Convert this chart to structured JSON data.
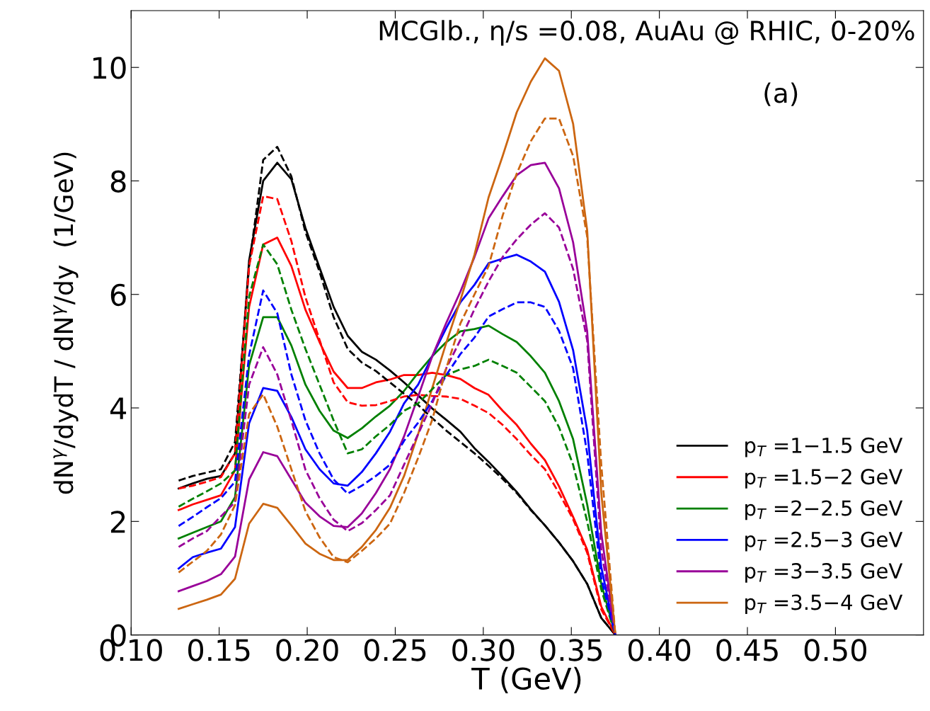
{
  "chart_data": {
    "type": "line",
    "title": "MCGlb., η/s =0.08, AuAu @ RHIC, 0-20%",
    "xlabel": "T (GeV)",
    "ylabel": "dN$^{γ}$/dydT / dN$^{γ}$/dy  (1/GeV)",
    "annotations": [
      "(a)"
    ],
    "x": [
      0.127,
      0.135,
      0.143,
      0.151,
      0.159,
      0.167,
      0.175,
      0.183,
      0.191,
      0.199,
      0.207,
      0.215,
      0.223,
      0.231,
      0.239,
      0.247,
      0.255,
      0.263,
      0.271,
      0.279,
      0.287,
      0.295,
      0.303,
      0.311,
      0.319,
      0.327,
      0.335,
      0.343,
      0.351,
      0.359,
      0.367,
      0.375
    ],
    "series": [
      {
        "name": "p$_{T}$ =1−1.5 GeV",
        "color": "#000000",
        "line_style": "solid",
        "values": [
          2.58,
          2.67,
          2.75,
          2.8,
          3.2,
          6.6,
          8.0,
          8.32,
          8.03,
          7.17,
          6.47,
          5.78,
          5.27,
          4.99,
          4.85,
          4.66,
          4.45,
          4.22,
          3.99,
          3.79,
          3.58,
          3.29,
          3.05,
          2.79,
          2.52,
          2.21,
          1.93,
          1.63,
          1.3,
          0.9,
          0.3,
          0
        ]
      },
      {
        "name": "p$_{T}$ =1.5−2 GeV",
        "color": "#ff0000",
        "line_style": "solid",
        "values": [
          2.2,
          2.3,
          2.38,
          2.46,
          2.9,
          5.78,
          6.88,
          7.0,
          6.5,
          5.73,
          5.16,
          4.64,
          4.35,
          4.35,
          4.45,
          4.5,
          4.58,
          4.58,
          4.62,
          4.58,
          4.51,
          4.35,
          4.23,
          3.95,
          3.7,
          3.37,
          3.08,
          2.62,
          2.08,
          1.5,
          0.5,
          0
        ]
      },
      {
        "name": "p$_{T}$ =2−2.5 GeV",
        "color": "#008000",
        "line_style": "solid",
        "values": [
          1.7,
          1.8,
          1.9,
          2.0,
          2.43,
          4.75,
          5.6,
          5.6,
          5.1,
          4.41,
          3.95,
          3.6,
          3.47,
          3.64,
          3.85,
          4.04,
          4.3,
          4.62,
          4.91,
          5.16,
          5.35,
          5.39,
          5.45,
          5.3,
          5.16,
          4.91,
          4.62,
          4.12,
          3.45,
          2.3,
          0.9,
          0
        ]
      },
      {
        "name": "p$_{T}$ =2.5−3 GeV",
        "color": "#0000ff",
        "line_style": "solid",
        "values": [
          1.17,
          1.37,
          1.45,
          1.52,
          1.9,
          3.73,
          4.35,
          4.3,
          3.84,
          3.27,
          2.92,
          2.67,
          2.63,
          2.87,
          3.2,
          3.58,
          4.08,
          4.41,
          4.91,
          5.41,
          5.86,
          6.17,
          6.55,
          6.63,
          6.7,
          6.58,
          6.4,
          5.87,
          5.02,
          3.6,
          1.2,
          0
        ]
      },
      {
        "name": "p$_{T}$ =3−3.5 GeV",
        "color": "#990099",
        "line_style": "solid",
        "values": [
          0.77,
          0.86,
          0.95,
          1.07,
          1.38,
          2.74,
          3.22,
          3.15,
          2.74,
          2.33,
          2.09,
          1.92,
          1.9,
          2.14,
          2.5,
          2.92,
          3.5,
          4.2,
          4.91,
          5.5,
          6.05,
          6.66,
          7.34,
          7.73,
          8.1,
          8.28,
          8.32,
          7.87,
          6.92,
          5.35,
          1.8,
          0
        ]
      },
      {
        "name": "p$_{T}$ =3.5−4 GeV",
        "color": "#cc6611",
        "line_style": "solid",
        "values": [
          0.46,
          0.54,
          0.62,
          0.71,
          0.99,
          1.96,
          2.31,
          2.24,
          1.93,
          1.61,
          1.43,
          1.32,
          1.32,
          1.55,
          1.85,
          2.24,
          2.8,
          3.54,
          4.35,
          5.15,
          5.9,
          6.7,
          7.71,
          8.44,
          9.21,
          9.75,
          10.16,
          9.94,
          9.01,
          7.13,
          2.5,
          0
        ]
      },
      {
        "color": "#000000",
        "line_style": "dashed",
        "values": [
          2.72,
          2.8,
          2.86,
          2.92,
          3.4,
          6.5,
          8.37,
          8.6,
          8.08,
          7.1,
          6.4,
          5.6,
          5.04,
          4.8,
          4.65,
          4.45,
          4.25,
          4.05,
          3.82,
          3.6,
          3.4,
          3.2,
          2.98,
          2.75,
          2.5,
          2.2,
          1.93,
          1.63,
          1.3,
          0.9,
          0.3,
          0
        ]
      },
      {
        "color": "#ff0000",
        "line_style": "dashed",
        "values": [
          2.58,
          2.63,
          2.7,
          2.78,
          3.2,
          6.5,
          7.73,
          7.68,
          6.94,
          5.95,
          5.2,
          4.45,
          4.1,
          4.04,
          4.05,
          4.12,
          4.2,
          4.23,
          4.21,
          4.2,
          4.16,
          4.04,
          3.91,
          3.7,
          3.45,
          3.17,
          2.92,
          2.5,
          2.04,
          1.45,
          0.45,
          0
        ]
      },
      {
        "color": "#008000",
        "line_style": "dashed",
        "values": [
          2.26,
          2.4,
          2.53,
          2.67,
          2.9,
          5.96,
          6.88,
          6.53,
          5.73,
          5.04,
          4.41,
          3.78,
          3.2,
          3.27,
          3.5,
          3.7,
          3.95,
          4.08,
          4.33,
          4.58,
          4.68,
          4.74,
          4.85,
          4.74,
          4.62,
          4.37,
          4.12,
          3.66,
          3.0,
          2.0,
          0.8,
          0
        ]
      },
      {
        "color": "#0000ff",
        "line_style": "dashed",
        "values": [
          1.92,
          2.08,
          2.25,
          2.41,
          2.7,
          4.93,
          6.07,
          5.67,
          4.59,
          3.78,
          3.2,
          2.74,
          2.49,
          2.63,
          2.8,
          3.0,
          3.42,
          3.74,
          4.12,
          4.58,
          4.95,
          5.24,
          5.61,
          5.74,
          5.86,
          5.86,
          5.78,
          5.36,
          4.7,
          3.2,
          1.0,
          0
        ]
      },
      {
        "color": "#990099",
        "line_style": "dashed",
        "values": [
          1.55,
          1.7,
          1.83,
          2.09,
          2.34,
          4.41,
          5.07,
          4.59,
          3.78,
          2.91,
          2.41,
          2.03,
          1.83,
          1.97,
          2.2,
          2.46,
          3.0,
          3.54,
          4.08,
          4.7,
          5.2,
          5.74,
          6.23,
          6.66,
          6.97,
          7.23,
          7.43,
          7.18,
          6.45,
          5.19,
          1.5,
          0
        ]
      },
      {
        "color": "#cc6611",
        "line_style": "dashed",
        "values": [
          1.1,
          1.29,
          1.48,
          1.77,
          2.29,
          3.89,
          4.24,
          3.67,
          2.92,
          2.18,
          1.72,
          1.37,
          1.28,
          1.48,
          1.7,
          1.96,
          2.5,
          3.12,
          3.79,
          4.7,
          5.49,
          6.0,
          6.5,
          7.39,
          8.13,
          8.7,
          9.1,
          9.1,
          8.44,
          7.02,
          3.0,
          0
        ]
      }
    ],
    "xlim": [
      0.1,
      0.55
    ],
    "xticks": [
      {
        "value": 0.1,
        "label": "0.10"
      },
      {
        "value": 0.15,
        "label": "0.15"
      },
      {
        "value": 0.2,
        "label": "0.20"
      },
      {
        "value": 0.25,
        "label": "0.25"
      },
      {
        "value": 0.3,
        "label": "0.30"
      },
      {
        "value": 0.35,
        "label": "0.35"
      },
      {
        "value": 0.4,
        "label": "0.40"
      },
      {
        "value": 0.45,
        "label": "0.45"
      },
      {
        "value": 0.5,
        "label": "0.50"
      }
    ],
    "ylim": [
      0,
      11
    ],
    "yticks": [
      0,
      2,
      4,
      6,
      8,
      10
    ],
    "grid": false,
    "legend": "lower right",
    "marker": "none"
  }
}
